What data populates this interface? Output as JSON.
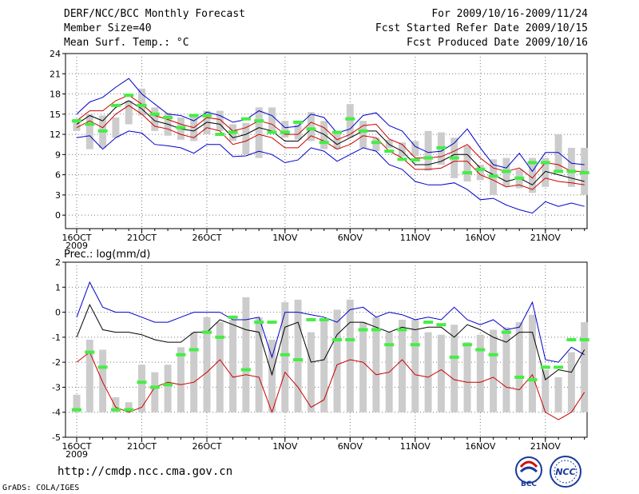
{
  "header": {
    "title": "DERF/NCC/BCC Monthly Forecast",
    "member_size": "Member Size=40",
    "variable": "Mean Surf. Temp.: °C",
    "period": "For 2009/10/16-2009/11/24",
    "started": "Fcst Started Refer Date 2009/10/15",
    "produced": "Fcst Produced Date 2009/10/16"
  },
  "footer": {
    "url": "http://cmdp.ncc.cma.gov.cn",
    "grads": "GrADS: COLA/IGES"
  },
  "logos": [
    {
      "name": "bcc-logo",
      "text": "BCC"
    },
    {
      "name": "ncc-logo",
      "text": "NCC"
    }
  ],
  "colors": {
    "mean": "#000000",
    "spread": "#cc0000",
    "extreme": "#0000cc",
    "green": "#44ee44",
    "bar": "#cccccc"
  },
  "chart_data": [
    {
      "type": "line",
      "title": "Mean Surf. Temp.: °C",
      "x": [
        "16OCT",
        "17OCT",
        "18OCT",
        "19OCT",
        "20OCT",
        "21OCT",
        "22OCT",
        "23OCT",
        "24OCT",
        "25OCT",
        "26OCT",
        "27OCT",
        "28OCT",
        "29OCT",
        "30OCT",
        "31OCT",
        "1NOV",
        "2NOV",
        "3NOV",
        "4NOV",
        "5NOV",
        "6NOV",
        "7NOV",
        "8NOV",
        "9NOV",
        "10NOV",
        "11NOV",
        "12NOV",
        "13NOV",
        "14NOV",
        "15NOV",
        "16NOV",
        "17NOV",
        "18NOV",
        "19NOV",
        "20NOV",
        "21NOV",
        "22NOV",
        "23NOV",
        "24NOV"
      ],
      "xtick_labels": [
        {
          "label": "16OCT",
          "sub": "2009",
          "day": 0
        },
        {
          "label": "21OCT",
          "day": 5
        },
        {
          "label": "26OCT",
          "day": 10
        },
        {
          "label": "1NOV",
          "day": 16
        },
        {
          "label": "6NOV",
          "day": 21
        },
        {
          "label": "11NOV",
          "day": 26
        },
        {
          "label": "16NOV",
          "day": 31
        },
        {
          "label": "21NOV",
          "day": 36
        }
      ],
      "ylim": [
        -2,
        24
      ],
      "yticks": [
        0,
        3,
        6,
        9,
        12,
        15,
        18,
        21,
        24
      ],
      "series": [
        {
          "name": "max",
          "color": "#0000cc",
          "values": [
            15.0,
            16.8,
            17.5,
            19.0,
            20.3,
            18.0,
            16.5,
            15.0,
            14.8,
            14.0,
            15.3,
            14.8,
            13.8,
            14.2,
            15.5,
            14.8,
            13.0,
            13.2,
            15.0,
            14.5,
            12.2,
            12.8,
            14.8,
            15.2,
            13.3,
            12.5,
            10.2,
            9.3,
            9.5,
            10.7,
            12.8,
            10.0,
            7.5,
            7.0,
            9.2,
            6.5,
            9.3,
            9.3,
            7.7,
            7.5
          ]
        },
        {
          "name": "upper",
          "color": "#cc0000",
          "values": [
            14.0,
            15.5,
            15.5,
            17.0,
            17.8,
            16.5,
            14.8,
            14.2,
            13.5,
            13.0,
            14.5,
            14.2,
            12.5,
            13.0,
            14.0,
            13.5,
            12.0,
            12.0,
            13.8,
            13.0,
            11.2,
            12.0,
            13.3,
            13.5,
            11.3,
            10.5,
            8.5,
            8.5,
            8.7,
            9.5,
            10.5,
            8.5,
            7.0,
            6.5,
            7.0,
            5.5,
            7.8,
            7.5,
            6.5,
            6.5
          ]
        },
        {
          "name": "mean",
          "color": "#000000",
          "values": [
            13.5,
            14.8,
            14.0,
            16.0,
            17.0,
            15.8,
            14.0,
            13.5,
            12.8,
            12.5,
            13.8,
            13.5,
            11.5,
            12.0,
            13.0,
            12.5,
            11.0,
            11.0,
            12.8,
            12.0,
            10.5,
            11.5,
            12.5,
            12.5,
            10.5,
            9.5,
            7.5,
            7.5,
            8.0,
            9.0,
            9.0,
            7.0,
            6.0,
            5.0,
            5.5,
            4.5,
            6.5,
            6.0,
            5.5,
            5.0
          ]
        },
        {
          "name": "lower",
          "color": "#cc0000",
          "values": [
            13.0,
            14.0,
            13.0,
            15.0,
            16.3,
            15.0,
            13.2,
            12.8,
            12.0,
            11.5,
            13.0,
            12.5,
            10.5,
            11.0,
            12.0,
            11.5,
            10.0,
            10.0,
            11.8,
            11.0,
            9.8,
            10.5,
            11.8,
            11.5,
            9.5,
            8.5,
            6.8,
            6.8,
            7.0,
            8.0,
            8.0,
            6.0,
            5.2,
            4.2,
            4.5,
            3.8,
            5.5,
            5.0,
            4.8,
            4.5
          ]
        },
        {
          "name": "min",
          "color": "#0000cc",
          "values": [
            11.5,
            11.8,
            9.8,
            11.5,
            12.5,
            12.2,
            10.5,
            10.3,
            10.0,
            9.2,
            10.5,
            10.5,
            8.7,
            8.8,
            9.5,
            9.0,
            7.8,
            8.2,
            10.0,
            9.5,
            8.0,
            9.0,
            10.0,
            9.5,
            7.5,
            6.8,
            5.0,
            4.5,
            4.5,
            4.8,
            3.8,
            2.3,
            2.5,
            1.5,
            0.8,
            0.3,
            2.0,
            1.3,
            1.8,
            1.3
          ]
        }
      ],
      "bars": {
        "color": "#cccccc",
        "low": [
          12.5,
          9.8,
          10.0,
          11.5,
          13.5,
          14.8,
          12.5,
          11.8,
          11.2,
          11.0,
          12.0,
          12.5,
          11.0,
          9.0,
          8.5,
          12.5,
          11.5,
          11.2,
          11.0,
          9.8,
          9.8,
          11.5,
          10.0,
          9.5,
          10.0,
          8.7,
          8.8,
          6.6,
          7.5,
          5.5,
          5.0,
          5.2,
          3.0,
          4.3,
          4.0,
          3.3,
          4.2,
          6.5,
          4.2,
          3.0
        ],
        "high": [
          14.3,
          15.0,
          14.8,
          14.5,
          17.0,
          18.8,
          16.0,
          15.2,
          14.5,
          15.0,
          15.5,
          15.5,
          13.5,
          13.7,
          16.0,
          16.0,
          14.0,
          13.5,
          15.3,
          14.0,
          12.5,
          16.5,
          14.0,
          11.5,
          11.2,
          10.8,
          11.0,
          12.5,
          12.3,
          11.5,
          10.3,
          7.5,
          8.3,
          8.5,
          6.8,
          8.5,
          8.5,
          12.0,
          10.0,
          10.0
        ]
      },
      "observed_marks": [
        14.0,
        13.5,
        12.5,
        16.3,
        17.8,
        16.3,
        15.0,
        14.5,
        13.0,
        14.8,
        14.8,
        12.0,
        12.3,
        14.3,
        14.0,
        12.3,
        12.3,
        13.8,
        12.8,
        10.8,
        12.3,
        14.3,
        12.5,
        10.8,
        9.5,
        8.3,
        8.2,
        8.5,
        10.0,
        8.5,
        6.3,
        6.8,
        5.8,
        6.5,
        5.5,
        7.8,
        7.8,
        6.5,
        6.5,
        6.3
      ]
    },
    {
      "type": "line",
      "title": "Prec.: log(mm/d)",
      "x": [
        "16OCT",
        "17OCT",
        "18OCT",
        "19OCT",
        "20OCT",
        "21OCT",
        "22OCT",
        "23OCT",
        "24OCT",
        "25OCT",
        "26OCT",
        "27OCT",
        "28OCT",
        "29OCT",
        "30OCT",
        "31OCT",
        "1NOV",
        "2NOV",
        "3NOV",
        "4NOV",
        "5NOV",
        "6NOV",
        "7NOV",
        "8NOV",
        "9NOV",
        "10NOV",
        "11NOV",
        "12NOV",
        "13NOV",
        "14NOV",
        "15NOV",
        "16NOV",
        "17NOV",
        "18NOV",
        "19NOV",
        "20NOV",
        "21NOV",
        "22NOV",
        "23NOV",
        "24NOV"
      ],
      "xtick_labels": [
        {
          "label": "16OCT",
          "sub": "2009",
          "day": 0
        },
        {
          "label": "21OCT",
          "day": 5
        },
        {
          "label": "26OCT",
          "day": 10
        },
        {
          "label": "1NOV",
          "day": 16
        },
        {
          "label": "6NOV",
          "day": 21
        },
        {
          "label": "11NOV",
          "day": 26
        },
        {
          "label": "16NOV",
          "day": 31
        },
        {
          "label": "21NOV",
          "day": 36
        }
      ],
      "ylim": [
        -5,
        2
      ],
      "yticks": [
        -5,
        -4,
        -3,
        -2,
        -1,
        0,
        1,
        2
      ],
      "series": [
        {
          "name": "max",
          "color": "#0000cc",
          "values": [
            -0.2,
            1.2,
            0.2,
            0.0,
            0.0,
            -0.2,
            -0.4,
            -0.4,
            -0.2,
            0.0,
            0.0,
            0.0,
            -0.3,
            -0.3,
            -0.2,
            -1.8,
            0.0,
            0.0,
            -0.1,
            -0.2,
            -0.4,
            0.1,
            0.2,
            -0.2,
            0.0,
            -0.1,
            -0.3,
            -0.2,
            -0.3,
            0.2,
            -0.3,
            -0.5,
            -0.3,
            -0.7,
            -0.6,
            0.4,
            -1.9,
            -2.0,
            -1.4,
            -1.7
          ]
        },
        {
          "name": "mean",
          "color": "#000000",
          "values": [
            -1.0,
            0.3,
            -0.7,
            -0.8,
            -0.8,
            -0.9,
            -1.1,
            -1.2,
            -1.2,
            -0.8,
            -0.8,
            -0.3,
            -0.5,
            -0.7,
            -0.8,
            -2.5,
            -0.6,
            -0.4,
            -2.0,
            -1.9,
            -0.9,
            -0.4,
            -0.4,
            -0.6,
            -0.8,
            -0.6,
            -0.7,
            -0.6,
            -0.6,
            -1.0,
            -0.5,
            -0.7,
            -1.0,
            -1.2,
            -0.8,
            -0.8,
            -2.7,
            -2.3,
            -2.4,
            -1.5
          ]
        },
        {
          "name": "lower",
          "color": "#cc0000",
          "values": [
            -2.0,
            -1.6,
            -2.8,
            -3.8,
            -4.0,
            -3.8,
            -3.0,
            -2.8,
            -2.9,
            -2.8,
            -2.4,
            -1.9,
            -2.6,
            -2.5,
            -2.6,
            -4.0,
            -2.4,
            -3.0,
            -3.8,
            -3.5,
            -2.1,
            -1.9,
            -2.0,
            -2.5,
            -2.4,
            -1.9,
            -2.5,
            -2.6,
            -2.3,
            -2.7,
            -2.8,
            -2.8,
            -2.6,
            -3.0,
            -3.1,
            -2.5,
            -4.0,
            -4.3,
            -4.0,
            -3.2
          ]
        }
      ],
      "bars": {
        "color": "#cccccc",
        "low": [
          -4.0,
          -4.0,
          -4.0,
          -4.0,
          -4.0,
          -4.0,
          -4.0,
          -4.0,
          -4.0,
          -4.0,
          -4.0,
          -4.0,
          -4.0,
          -4.0,
          -4.0,
          -4.0,
          -4.0,
          -4.0,
          -4.0,
          -4.0,
          -4.0,
          -4.0,
          -4.0,
          -4.0,
          -4.0,
          -4.0,
          -4.0,
          -4.0,
          -4.0,
          -4.0,
          -4.0,
          -4.0,
          -4.0,
          -4.0,
          -4.0,
          -4.0,
          -4.0,
          -4.0,
          -4.0,
          -4.0
        ],
        "high": [
          -3.3,
          -1.1,
          -1.5,
          -3.4,
          -3.6,
          -2.1,
          -2.4,
          -2.1,
          -1.4,
          -0.8,
          -0.2,
          -0.4,
          -0.3,
          0.6,
          -0.2,
          -1.1,
          0.4,
          0.5,
          -0.8,
          -0.3,
          0.1,
          0.5,
          -0.4,
          -0.2,
          -0.8,
          -0.3,
          -0.3,
          -0.8,
          -0.9,
          -0.5,
          -1.2,
          -0.9,
          -0.7,
          -0.6,
          -0.4,
          -0.1,
          -2.3,
          -2.6,
          -1.6,
          -0.4
        ]
      },
      "observed_marks": [
        -3.9,
        -1.6,
        -2.2,
        -3.9,
        -3.9,
        -2.8,
        -3.0,
        -2.9,
        -1.7,
        -1.5,
        -0.8,
        -1.0,
        -0.2,
        -2.3,
        -0.4,
        -0.4,
        -1.7,
        -1.9,
        -0.3,
        -0.3,
        -1.1,
        -1.1,
        -0.7,
        -0.7,
        -1.3,
        -0.7,
        -1.3,
        -0.4,
        -0.5,
        -1.8,
        -1.3,
        -1.5,
        -1.7,
        -0.8,
        -2.6,
        -2.7,
        -2.2,
        -2.2,
        -1.1,
        -1.1
      ]
    }
  ]
}
